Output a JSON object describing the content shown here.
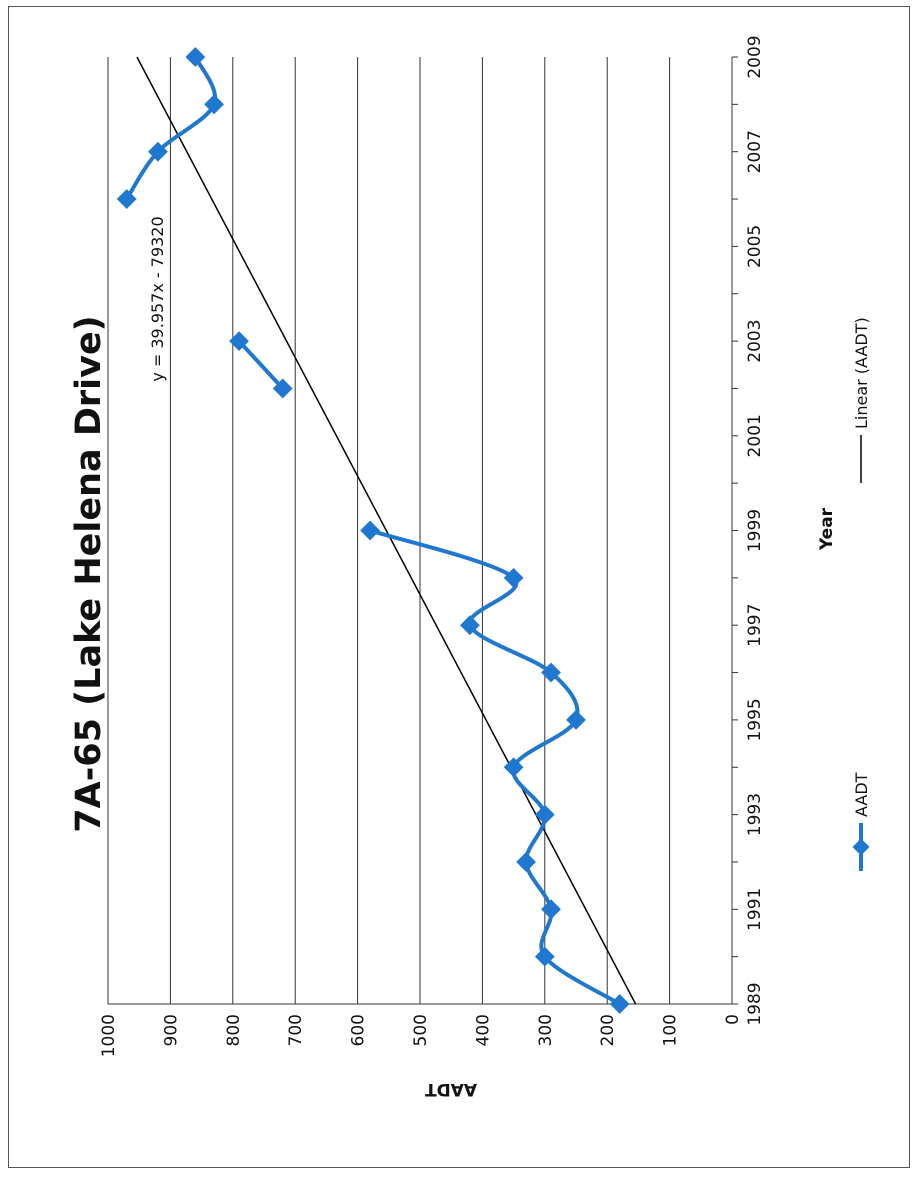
{
  "chart_data": {
    "type": "line",
    "title": "7A-65 (Lake Helena Drive)",
    "xlabel": "Year",
    "ylabel": "AADT",
    "xlim": [
      1989,
      2009
    ],
    "ylim": [
      0,
      1000
    ],
    "x_ticks": [
      "1989",
      "1991",
      "1993",
      "1995",
      "1997",
      "1999",
      "2001",
      "2003",
      "2005",
      "2007",
      "2009"
    ],
    "y_ticks": [
      "0",
      "100",
      "200",
      "300",
      "400",
      "500",
      "600",
      "700",
      "800",
      "900",
      "1000"
    ],
    "grid": true,
    "orientation": "rotated 90° counter-clockwise",
    "series": [
      {
        "name": "AADT",
        "color": "#1f77d0",
        "marker": "diamond",
        "smoothed": true,
        "segments": [
          [
            {
              "x": 1989,
              "y": 180
            },
            {
              "x": 1990,
              "y": 300
            },
            {
              "x": 1991,
              "y": 290
            },
            {
              "x": 1992,
              "y": 330
            },
            {
              "x": 1993,
              "y": 300
            },
            {
              "x": 1994,
              "y": 350
            },
            {
              "x": 1995,
              "y": 250
            },
            {
              "x": 1996,
              "y": 290
            },
            {
              "x": 1997,
              "y": 420
            },
            {
              "x": 1998,
              "y": 350
            },
            {
              "x": 1999,
              "y": 580
            }
          ],
          [
            {
              "x": 2002,
              "y": 720
            },
            {
              "x": 2003,
              "y": 790
            }
          ],
          [
            {
              "x": 2006,
              "y": 970
            },
            {
              "x": 2007,
              "y": 920
            },
            {
              "x": 2008,
              "y": 830
            },
            {
              "x": 2009,
              "y": 860
            }
          ]
        ]
      }
    ],
    "trendline": {
      "name": "Linear (AADT)",
      "equation": "y = 39.957x - 79320",
      "slope": 39.957,
      "intercept": -79320,
      "color": "#000000"
    },
    "legend": {
      "placement": "bottom",
      "entries": [
        "AADT",
        "Linear (AADT)"
      ]
    }
  }
}
